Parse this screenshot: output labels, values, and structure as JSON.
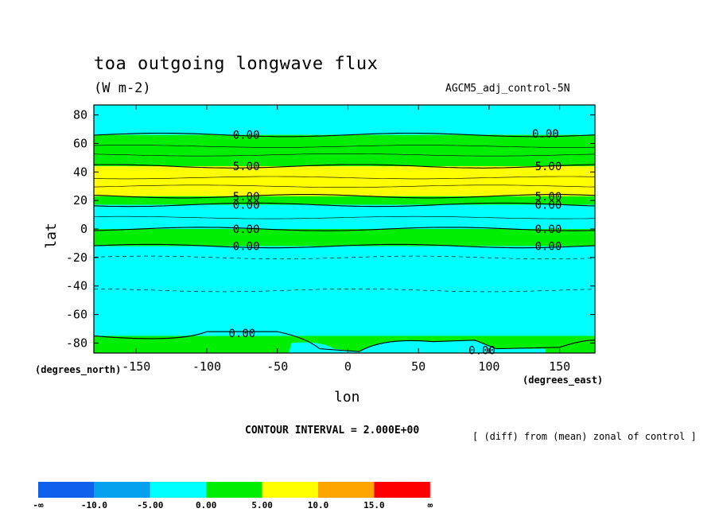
{
  "header": {
    "title": "toa outgoing longwave flux",
    "units": "(W m-2)",
    "run_label": "AGCM5_adj_control-5N"
  },
  "footer": {
    "contour_interval": "CONTOUR INTERVAL = 2.000E+00",
    "diff_note": "[ (diff) from (mean) zonal of control ]",
    "lat_units": "(degrees_north)",
    "lon_units": "(degrees_east)"
  },
  "chart_data": {
    "type": "heatmap",
    "title": "toa outgoing longwave flux",
    "subtitle": "(W m-2)",
    "xlabel": "lon",
    "ylabel": "lat",
    "xlim": [
      -180,
      175
    ],
    "ylim": [
      -87,
      87
    ],
    "x_ticks": [
      -150,
      -100,
      -50,
      0,
      50,
      100,
      150
    ],
    "x_tick_labels": [
      "-150",
      "-100",
      "-50",
      "0",
      "50",
      "100",
      "150"
    ],
    "y_ticks": [
      80,
      60,
      40,
      20,
      0,
      -20,
      -40,
      -60,
      -80
    ],
    "y_tick_labels": [
      "80",
      "60",
      "40",
      "20",
      "0",
      "-20",
      "-40",
      "-60",
      "-80"
    ],
    "grid": false,
    "legend": "bottom",
    "color_levels": [
      {
        "from": "-∞",
        "to": "-10.0",
        "color": "#1060ee"
      },
      {
        "from": "-10.0",
        "to": "-5.00",
        "color": "#05a0ee"
      },
      {
        "from": "-5.00",
        "to": "0.00",
        "color": "#00ffff"
      },
      {
        "from": "0.00",
        "to": "5.00",
        "color": "#00ee00"
      },
      {
        "from": "5.00",
        "to": "10.0",
        "color": "#ffff00"
      },
      {
        "from": "10.0",
        "to": "15.0",
        "color": "#ffa500"
      },
      {
        "from": "15.0",
        "to": "∞",
        "color": "#ff0000"
      }
    ],
    "colorbar_labels": [
      "-∞",
      "-10.0",
      "-5.00",
      "0.00",
      "5.00",
      "10.0",
      "15.0",
      "∞"
    ],
    "zonal_bands": [
      {
        "lat_min": 66,
        "lat_max": 87,
        "level": "-5.00 to 0.00"
      },
      {
        "lat_min": 44,
        "lat_max": 66,
        "level": "0.00 to 5.00"
      },
      {
        "lat_min": 23,
        "lat_max": 44,
        "level": "5.00 to 10.0"
      },
      {
        "lat_min": 17,
        "lat_max": 23,
        "level": "0.00 to 5.00"
      },
      {
        "lat_min": 0,
        "lat_max": 17,
        "level": "-5.00 to 0.00"
      },
      {
        "lat_min": -12,
        "lat_max": 0,
        "level": "0.00 to 5.00"
      },
      {
        "lat_min": -75,
        "lat_max": -12,
        "level": "-5.00 to 0.00"
      },
      {
        "lat_min": -87,
        "lat_max": -75,
        "level": "0.00 to 5.00"
      }
    ],
    "contour_labels": [
      {
        "text": "0.00",
        "lon": -72,
        "lat": 66
      },
      {
        "text": "0.00",
        "lon": 140,
        "lat": 67
      },
      {
        "text": "5.00",
        "lon": -72,
        "lat": 44
      },
      {
        "text": "5.00",
        "lon": 142,
        "lat": 44
      },
      {
        "text": "5.00",
        "lon": -72,
        "lat": 23
      },
      {
        "text": "0.00",
        "lon": -72,
        "lat": 17
      },
      {
        "text": "5.00",
        "lon": 142,
        "lat": 23
      },
      {
        "text": "0.00",
        "lon": 142,
        "lat": 17
      },
      {
        "text": "0.00",
        "lon": -72,
        "lat": 0
      },
      {
        "text": "0.00",
        "lon": 142,
        "lat": 0
      },
      {
        "text": "0.00",
        "lon": -72,
        "lat": -12
      },
      {
        "text": "0.00",
        "lon": 142,
        "lat": -12
      },
      {
        "text": "0.00",
        "lon": -75,
        "lat": -73
      },
      {
        "text": "0.00",
        "lon": 95,
        "lat": -85
      }
    ]
  }
}
